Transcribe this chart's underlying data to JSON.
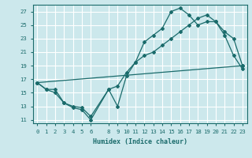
{
  "xlabel": "Humidex (Indice chaleur)",
  "bg_color": "#cce8ec",
  "grid_color": "#ffffff",
  "line_color": "#1a6b6b",
  "xlim": [
    -0.5,
    23.5
  ],
  "ylim": [
    10.5,
    28.0
  ],
  "xticks": [
    0,
    1,
    2,
    3,
    4,
    5,
    6,
    8,
    9,
    10,
    11,
    12,
    13,
    14,
    15,
    16,
    17,
    18,
    19,
    20,
    21,
    22,
    23
  ],
  "yticks": [
    11,
    13,
    15,
    17,
    19,
    21,
    23,
    25,
    27
  ],
  "line1_x": [
    0,
    1,
    2,
    3,
    4,
    5,
    6,
    8,
    9,
    10,
    11,
    12,
    13,
    14,
    15,
    16,
    17,
    18,
    19,
    20,
    21,
    22,
    23
  ],
  "line1_y": [
    16.5,
    15.5,
    15.0,
    13.5,
    12.8,
    12.5,
    11.0,
    15.5,
    13.0,
    17.5,
    19.5,
    22.5,
    23.5,
    24.5,
    27.0,
    27.5,
    26.5,
    25.0,
    25.5,
    25.5,
    23.5,
    20.5,
    18.5
  ],
  "line2_x": [
    0,
    1,
    2,
    3,
    4,
    5,
    6,
    8,
    9,
    10,
    11,
    12,
    13,
    14,
    15,
    16,
    17,
    18,
    19,
    20,
    21,
    22,
    23
  ],
  "line2_y": [
    16.5,
    15.5,
    15.5,
    13.5,
    13.0,
    12.8,
    11.5,
    15.5,
    16.0,
    18.0,
    19.5,
    20.5,
    21.0,
    22.0,
    23.0,
    24.0,
    25.0,
    26.0,
    26.5,
    25.5,
    24.0,
    23.0,
    19.0
  ],
  "line3_x": [
    0,
    23
  ],
  "line3_y": [
    16.5,
    19.0
  ],
  "xlabel_fontsize": 6.0,
  "tick_fontsize": 5.2
}
